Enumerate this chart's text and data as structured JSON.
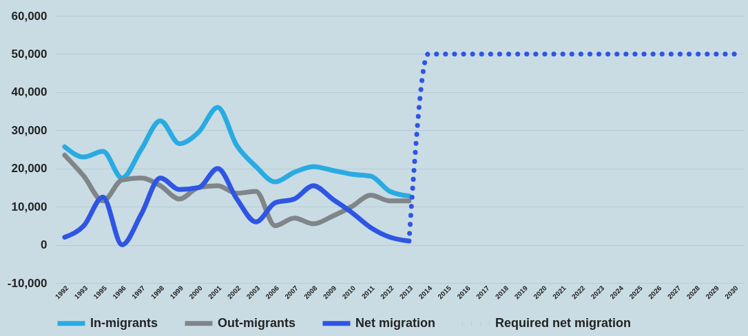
{
  "chart_data": {
    "type": "line",
    "categories": [
      "1992",
      "1993",
      "1995",
      "1996",
      "1997",
      "1998",
      "1999",
      "2000",
      "2001",
      "2002",
      "2003",
      "2006",
      "2007",
      "2008",
      "2009",
      "2010",
      "2011",
      "2012",
      "2013",
      "2014",
      "2015",
      "2016",
      "2017",
      "2018",
      "2019",
      "2020",
      "2021",
      "2022",
      "2023",
      "2024",
      "2025",
      "2026",
      "2027",
      "2028",
      "2029",
      "2030"
    ],
    "series": [
      {
        "name": "In-migrants",
        "color": "#29abe2",
        "line_style": "solid",
        "values": [
          25700,
          23000,
          24500,
          17500,
          25000,
          32500,
          26500,
          29500,
          36000,
          26000,
          20500,
          16500,
          19000,
          20500,
          19500,
          18500,
          18000,
          14000,
          12800,
          null,
          null,
          null,
          null,
          null,
          null,
          null,
          null,
          null,
          null,
          null,
          null,
          null,
          null,
          null,
          null,
          null
        ]
      },
      {
        "name": "Out-migrants",
        "color": "#7f8589",
        "line_style": "solid",
        "values": [
          23500,
          18000,
          11500,
          17000,
          17500,
          15500,
          12000,
          15000,
          15500,
          13500,
          14000,
          5000,
          7000,
          5500,
          7500,
          10000,
          13000,
          11500,
          11500,
          null,
          null,
          null,
          null,
          null,
          null,
          null,
          null,
          null,
          null,
          null,
          null,
          null,
          null,
          null,
          null,
          null
        ]
      },
      {
        "name": "Net migration",
        "color": "#2f55e4",
        "line_style": "solid",
        "values": [
          2000,
          5000,
          12500,
          0,
          8000,
          17500,
          14500,
          15000,
          20000,
          12000,
          6000,
          11000,
          12000,
          15500,
          12000,
          8500,
          4500,
          2000,
          1000,
          null,
          null,
          null,
          null,
          null,
          null,
          null,
          null,
          null,
          null,
          null,
          null,
          null,
          null,
          null,
          null,
          null
        ]
      },
      {
        "name": "Required net migration",
        "color": "#2f55e4",
        "line_style": "dotted",
        "values": [
          null,
          null,
          null,
          null,
          null,
          null,
          null,
          null,
          null,
          null,
          null,
          null,
          null,
          null,
          null,
          null,
          null,
          null,
          1000,
          50000,
          50000,
          50000,
          50000,
          50000,
          50000,
          50000,
          50000,
          50000,
          50000,
          50000,
          50000,
          50000,
          50000,
          50000,
          50000,
          50000
        ]
      }
    ],
    "ylim": [
      -10000,
      60000
    ],
    "yticks": [
      {
        "value": -10000,
        "label": "-10,000"
      },
      {
        "value": 0,
        "label": "0"
      },
      {
        "value": 10000,
        "label": "10,000"
      },
      {
        "value": 20000,
        "label": "20,000"
      },
      {
        "value": 30000,
        "label": "30,000"
      },
      {
        "value": 40000,
        "label": "40,000"
      },
      {
        "value": 50000,
        "label": "50,000"
      },
      {
        "value": 60000,
        "label": "60,000"
      }
    ],
    "grid": "y",
    "legend": "bottom"
  }
}
